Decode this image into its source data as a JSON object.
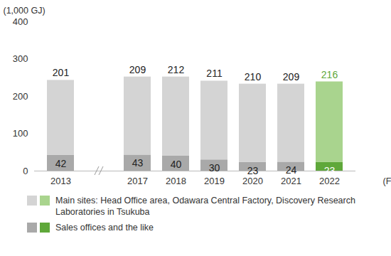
{
  "chart_data": {
    "type": "bar",
    "stacked": true,
    "data_labels": true,
    "grid": false,
    "x_label": "(FY)",
    "y_label": "(1,000 GJ)",
    "categories": [
      "2013",
      "2017",
      "2018",
      "2019",
      "2020",
      "2021",
      "2022"
    ],
    "ylim": [
      0,
      400
    ],
    "yticks": [
      0,
      100,
      200,
      300,
      400
    ],
    "series": [
      {
        "name": "Main sites: Head Office area, Odawara Central Factory, Discovery Research Laboratories in Tsukuba",
        "values": [
          201,
          209,
          212,
          211,
          210,
          209,
          216
        ],
        "colors": [
          "#d4d4d4",
          "#d4d4d4",
          "#d4d4d4",
          "#d4d4d4",
          "#d4d4d4",
          "#d4d4d4",
          "#a9d48e"
        ]
      },
      {
        "name": "Sales offices and the like",
        "values": [
          42,
          43,
          40,
          30,
          23,
          24,
          23
        ],
        "colors": [
          "#a9a9a9",
          "#a9a9a9",
          "#a9a9a9",
          "#a9a9a9",
          "#a9a9a9",
          "#a9a9a9",
          "#5fa83a"
        ]
      }
    ]
  }
}
